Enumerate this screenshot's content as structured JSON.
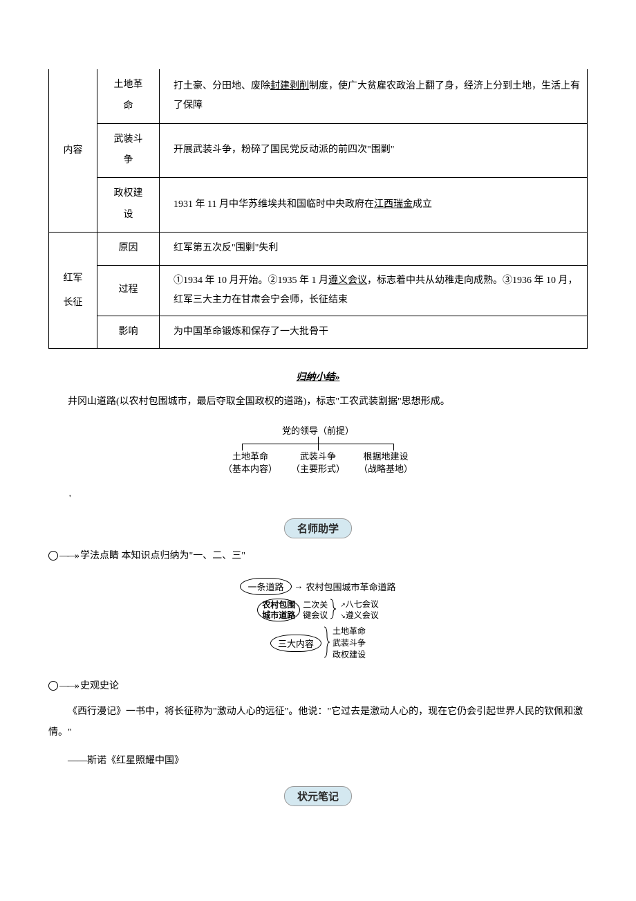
{
  "table": {
    "rows": [
      {
        "main": "内容",
        "sub": "土地革命",
        "content_html": "打土豪、分田地、废除<u>封建剥削</u>制度，使广大贫雇农政治上翻了身，经济上分到土地，生活上有了保障"
      },
      {
        "sub": "武装斗争",
        "content": "开展武装斗争，粉碎了国民党反动派的前四次\"围剿\""
      },
      {
        "sub": "政权建设",
        "content_html": "1931 年 11 月中华苏维埃共和国临时中央政府在<u>江西瑞金</u>成立"
      },
      {
        "main": "红军长征",
        "sub": "原因",
        "content": "红军第五次反\"围剿\"失利"
      },
      {
        "sub": "过程",
        "content_html": "①1934 年 10 月开始。②1935 年 1 月<u>遵义会议</u>，标志着中共从幼稚走向成熟。③1936 年 10 月，红军三大主力在甘肃会宁会师，长征结束"
      },
      {
        "sub": "影响",
        "content": "为中国革命锻炼和保存了一大批骨干"
      }
    ]
  },
  "summary": {
    "title": "归纳小结",
    "arrow": "»",
    "para": "井冈山道路(以农村包围城市，最后夺取全国政权的道路)，标志\"工农武装割据\"思想形成。",
    "diagram1": {
      "top": "党的领导（前提）",
      "items": [
        {
          "t1": "土地革命",
          "t2": "（基本内容）"
        },
        {
          "t1": "武装斗争",
          "t2": "（主要形式）"
        },
        {
          "t1": "根据地建设",
          "t2": "（战略基地）"
        }
      ]
    }
  },
  "teacher": {
    "badge": "名师助学",
    "sub1": "学法点睛  本知识点归纳为\"一、二、三\"",
    "diagram2": {
      "row1": {
        "oval": "一条道路",
        "arrow": "→",
        "text": "农村包围城市革命道路"
      },
      "row2": {
        "oval": "农村包围城市道路",
        "mid": "二次关键会议",
        "items": [
          "八七会议",
          "遵义会议"
        ]
      },
      "row3": {
        "oval": "三大内容",
        "items": [
          "土地革命",
          "武装斗争",
          "政权建设"
        ]
      }
    },
    "sub2": "史观史论",
    "quote": "《西行漫记》一书中，将长征称为\"激动人心的远征\"。他说：\"它过去是激动人心的，现在它仍会引起世界人民的钦佩和激情。\"",
    "quote_src": "——斯诺《红星照耀中国》"
  },
  "notes": {
    "badge": "状元笔记"
  },
  "colors": {
    "text": "#000000",
    "border": "#000000",
    "badge_bg": "#d4e8f0",
    "badge_border": "#999999"
  }
}
